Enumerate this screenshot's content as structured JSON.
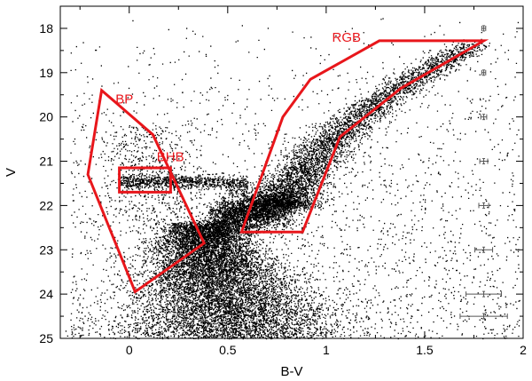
{
  "chart_data": {
    "type": "scatter",
    "xlabel": "B-V",
    "ylabel": "V",
    "xlim": [
      -0.35,
      2.0
    ],
    "ylim": [
      25,
      17.5
    ],
    "y_inverted": true,
    "grid": false,
    "x_ticks": [
      {
        "value": 0,
        "label": "0"
      },
      {
        "value": 0.5,
        "label": "0.5"
      },
      {
        "value": 1,
        "label": "1"
      },
      {
        "value": 1.5,
        "label": "1.5"
      },
      {
        "value": 2,
        "label": "2"
      }
    ],
    "y_ticks": [
      {
        "value": 18,
        "label": "18"
      },
      {
        "value": 19,
        "label": "19"
      },
      {
        "value": 20,
        "label": "20"
      },
      {
        "value": 21,
        "label": "21"
      },
      {
        "value": 22,
        "label": "22"
      },
      {
        "value": 23,
        "label": "23"
      },
      {
        "value": 24,
        "label": "24"
      },
      {
        "value": 25,
        "label": "25"
      }
    ],
    "regions": [
      {
        "label": "BP",
        "label_pos": [
          -0.07,
          19.7
        ],
        "polygon": [
          [
            -0.14,
            19.4
          ],
          [
            0.12,
            20.4
          ],
          [
            0.38,
            22.85
          ],
          [
            0.03,
            23.95
          ],
          [
            -0.21,
            21.3
          ]
        ]
      },
      {
        "label": "BHB",
        "label_pos": [
          0.14,
          21.0
        ],
        "polygon": [
          [
            -0.05,
            21.15
          ],
          [
            0.21,
            21.15
          ],
          [
            0.21,
            21.7
          ],
          [
            -0.05,
            21.7
          ]
        ]
      },
      {
        "label": "RGB",
        "label_pos": [
          1.03,
          18.3
        ],
        "polygon": [
          [
            1.27,
            18.28
          ],
          [
            1.8,
            18.28
          ],
          [
            1.38,
            19.35
          ],
          [
            1.07,
            20.45
          ],
          [
            0.88,
            22.6
          ],
          [
            0.57,
            22.6
          ],
          [
            0.78,
            20.0
          ],
          [
            0.92,
            19.15
          ]
        ]
      }
    ],
    "error_bars": [
      {
        "x": 1.8,
        "v": 18.0,
        "xerr": 0.01
      },
      {
        "x": 1.8,
        "v": 19.0,
        "xerr": 0.01
      },
      {
        "x": 1.8,
        "v": 20.0,
        "xerr": 0.015
      },
      {
        "x": 1.8,
        "v": 21.0,
        "xerr": 0.02
      },
      {
        "x": 1.8,
        "v": 22.0,
        "xerr": 0.025
      },
      {
        "x": 1.8,
        "v": 23.0,
        "xerr": 0.045
      },
      {
        "x": 1.8,
        "v": 24.0,
        "xerr": 0.09
      },
      {
        "x": 1.8,
        "v": 24.5,
        "xerr": 0.12
      }
    ],
    "sequences": [
      {
        "component": "main-sequence-core",
        "count": 9000
      },
      {
        "component": "subgiant-branch",
        "count": 3000
      },
      {
        "component": "red-giant-branch",
        "count": 4000
      },
      {
        "component": "horizontal-branch",
        "count": 900
      },
      {
        "component": "blue-plume",
        "count": 700
      },
      {
        "component": "field-stars",
        "count": 2600
      }
    ],
    "colors": {
      "points": "#000000",
      "regions": "#e8161b",
      "error_bars": "#555555"
    }
  }
}
